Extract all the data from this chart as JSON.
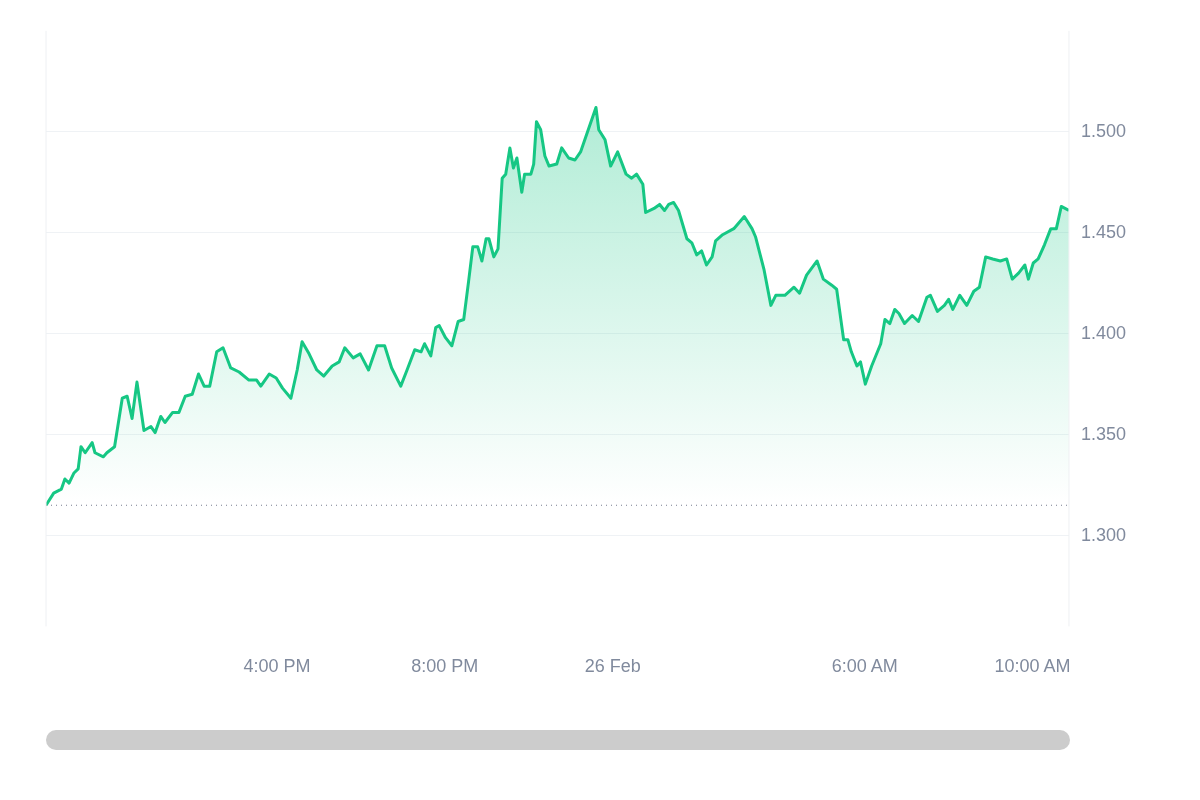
{
  "chart_data": {
    "type": "area",
    "x": [
      "--02-25T10:30",
      "--02-25T10:41",
      "--02-25T10:52",
      "--02-25T10:57",
      "--02-25T11:03",
      "--02-25T11:10",
      "--02-25T11:16",
      "--02-25T11:20",
      "--02-25T11:26",
      "--02-25T11:36",
      "--02-25T11:40",
      "--02-25T11:52",
      "--02-25T11:57",
      "--02-25T12:08",
      "--02-25T12:19",
      "--02-25T12:26",
      "--02-25T12:33",
      "--02-25T12:40",
      "--02-25T12:50",
      "--02-25T13:00",
      "--02-25T13:06",
      "--02-25T13:14",
      "--02-25T13:20",
      "--02-25T13:31",
      "--02-25T13:40",
      "--02-25T13:49",
      "--02-25T13:59",
      "--02-25T14:08",
      "--02-25T14:16",
      "--02-25T14:24",
      "--02-25T14:34",
      "--02-25T14:43",
      "--02-25T14:54",
      "--02-25T15:06",
      "--02-25T15:20",
      "--02-25T15:31",
      "--02-25T15:37",
      "--02-25T15:49",
      "--02-25T15:59",
      "--02-25T16:08",
      "--02-25T16:20",
      "--02-25T16:29",
      "--02-25T16:36",
      "--02-25T16:46",
      "--02-25T16:57",
      "--02-25T17:07",
      "--02-25T17:19",
      "--02-25T17:29",
      "--02-25T17:37",
      "--02-25T17:49",
      "--02-25T17:59",
      "--02-25T18:11",
      "--02-25T18:23",
      "--02-25T18:34",
      "--02-25T18:44",
      "--02-25T18:57",
      "--02-25T19:06",
      "--02-25T19:17",
      "--02-25T19:26",
      "--02-25T19:31",
      "--02-25T19:40",
      "--02-25T19:47",
      "--02-25T19:52",
      "--02-25T20:01",
      "--02-25T20:10",
      "--02-25T20:19",
      "--02-25T20:27",
      "--02-25T20:34",
      "--02-25T20:40",
      "--02-25T20:47",
      "--02-25T20:53",
      "--02-25T20:59",
      "--02-25T21:03",
      "--02-25T21:10",
      "--02-25T21:16",
      "--02-25T21:22",
      "--02-25T21:27",
      "--02-25T21:33",
      "--02-25T21:38",
      "--02-25T21:43",
      "--02-25T21:50",
      "--02-25T21:54",
      "--02-25T22:03",
      "--02-25T22:07",
      "--02-25T22:11",
      "--02-25T22:17",
      "--02-25T22:23",
      "--02-25T22:29",
      "--02-25T22:40",
      "--02-25T22:47",
      "--02-25T22:57",
      "--02-25T23:06",
      "--02-25T23:14",
      "--02-25T23:24",
      "--02-25T23:36",
      "--02-25T23:40",
      "--02-25T23:49",
      "--02-25T23:57",
      "--02-26T00:07",
      "--02-26T00:19",
      "--02-26T00:27",
      "--02-26T00:34",
      "--02-26T00:43",
      "--02-26T00:47",
      "--02-26T00:59",
      "--02-26T01:07",
      "--02-26T01:14",
      "--02-26T01:20",
      "--02-26T01:27",
      "--02-26T01:34",
      "--02-26T01:46",
      "--02-26T01:53",
      "--02-26T02:00",
      "--02-26T02:07",
      "--02-26T02:14",
      "--02-26T02:22",
      "--02-26T02:27",
      "--02-26T02:37",
      "--02-26T02:53",
      "--02-26T03:08",
      "--02-26T03:19",
      "--02-26T03:24",
      "--02-26T03:36",
      "--02-26T03:46",
      "--02-26T03:53",
      "--02-26T04:06",
      "--02-26T04:19",
      "--02-26T04:27",
      "--02-26T04:37",
      "--02-26T04:52",
      "--02-26T05:01",
      "--02-26T05:13",
      "--02-26T05:20",
      "--02-26T05:30",
      "--02-26T05:36",
      "--02-26T05:41",
      "--02-26T05:49",
      "--02-26T05:54",
      "--02-26T06:01",
      "--02-26T06:10",
      "--02-26T06:23",
      "--02-26T06:29",
      "--02-26T06:36",
      "--02-26T06:43",
      "--02-26T06:49",
      "--02-26T06:57",
      "--02-26T07:08",
      "--02-26T07:17",
      "--02-26T07:29",
      "--02-26T07:34",
      "--02-26T07:44",
      "--02-26T07:54",
      "--02-26T08:00",
      "--02-26T08:06",
      "--02-26T08:16",
      "--02-26T08:26",
      "--02-26T08:36",
      "--02-26T08:44",
      "--02-26T08:53",
      "--02-26T09:03",
      "--02-26T09:14",
      "--02-26T09:23",
      "--02-26T09:31",
      "--02-26T09:40",
      "--02-26T09:49",
      "--02-26T09:54",
      "--02-26T10:01",
      "--02-26T10:08",
      "--02-26T10:17",
      "--02-26T10:26",
      "--02-26T10:34",
      "--02-26T10:41",
      "--02-26T10:52"
    ],
    "series": [
      {
        "color": "#16c784",
        "values": [
          1.315,
          1.321,
          1.323,
          1.328,
          1.326,
          1.331,
          1.333,
          1.344,
          1.341,
          1.346,
          1.341,
          1.339,
          1.341,
          1.344,
          1.368,
          1.369,
          1.358,
          1.376,
          1.352,
          1.354,
          1.351,
          1.359,
          1.356,
          1.361,
          1.361,
          1.369,
          1.37,
          1.38,
          1.374,
          1.374,
          1.391,
          1.393,
          1.383,
          1.381,
          1.377,
          1.377,
          1.374,
          1.38,
          1.378,
          1.373,
          1.368,
          1.382,
          1.396,
          1.39,
          1.382,
          1.379,
          1.384,
          1.386,
          1.393,
          1.388,
          1.39,
          1.382,
          1.394,
          1.394,
          1.383,
          1.374,
          1.382,
          1.392,
          1.391,
          1.395,
          1.389,
          1.403,
          1.404,
          1.398,
          1.394,
          1.406,
          1.407,
          1.426,
          1.443,
          1.443,
          1.436,
          1.447,
          1.447,
          1.438,
          1.442,
          1.477,
          1.479,
          1.492,
          1.482,
          1.487,
          1.47,
          1.479,
          1.479,
          1.484,
          1.505,
          1.501,
          1.488,
          1.483,
          1.484,
          1.492,
          1.487,
          1.486,
          1.49,
          1.5,
          1.512,
          1.501,
          1.496,
          1.483,
          1.49,
          1.479,
          1.477,
          1.479,
          1.474,
          1.46,
          1.462,
          1.464,
          1.461,
          1.464,
          1.465,
          1.461,
          1.447,
          1.445,
          1.439,
          1.441,
          1.434,
          1.438,
          1.446,
          1.449,
          1.452,
          1.458,
          1.452,
          1.448,
          1.432,
          1.414,
          1.419,
          1.419,
          1.423,
          1.42,
          1.429,
          1.436,
          1.427,
          1.424,
          1.422,
          1.397,
          1.397,
          1.391,
          1.384,
          1.386,
          1.375,
          1.384,
          1.395,
          1.407,
          1.405,
          1.412,
          1.41,
          1.405,
          1.409,
          1.406,
          1.418,
          1.419,
          1.411,
          1.414,
          1.417,
          1.412,
          1.419,
          1.414,
          1.421,
          1.423,
          1.438,
          1.437,
          1.436,
          1.437,
          1.427,
          1.43,
          1.434,
          1.427,
          1.435,
          1.437,
          1.444,
          1.452,
          1.452,
          1.463,
          1.461
        ]
      }
    ],
    "xlim": [
      "--02-25T10:30",
      "--02-26T10:52"
    ],
    "xticks": [
      {
        "value": "--02-25T16:00",
        "label": "4:00 PM"
      },
      {
        "value": "--02-25T20:00",
        "label": "8:00 PM"
      },
      {
        "value": "--02-26T00:00",
        "label": "26 Feb"
      },
      {
        "value": "--02-26T06:00",
        "label": "6:00 AM"
      },
      {
        "value": "--02-26T10:00",
        "label": "10:00 AM"
      }
    ],
    "ylim": [
      1.255,
      1.55
    ],
    "yticks": [
      {
        "value": 1.3,
        "label": "1.300"
      },
      {
        "value": 1.35,
        "label": "1.350"
      },
      {
        "value": 1.4,
        "label": "1.400"
      },
      {
        "value": 1.45,
        "label": "1.450"
      },
      {
        "value": 1.5,
        "label": "1.500"
      }
    ],
    "ref_lines": [
      {
        "axis": "y",
        "value": 1.315,
        "color": "#777e90",
        "line_style": "dotted"
      }
    ],
    "grid": "y",
    "legend": false,
    "marker": "none",
    "line_style": "solid"
  }
}
